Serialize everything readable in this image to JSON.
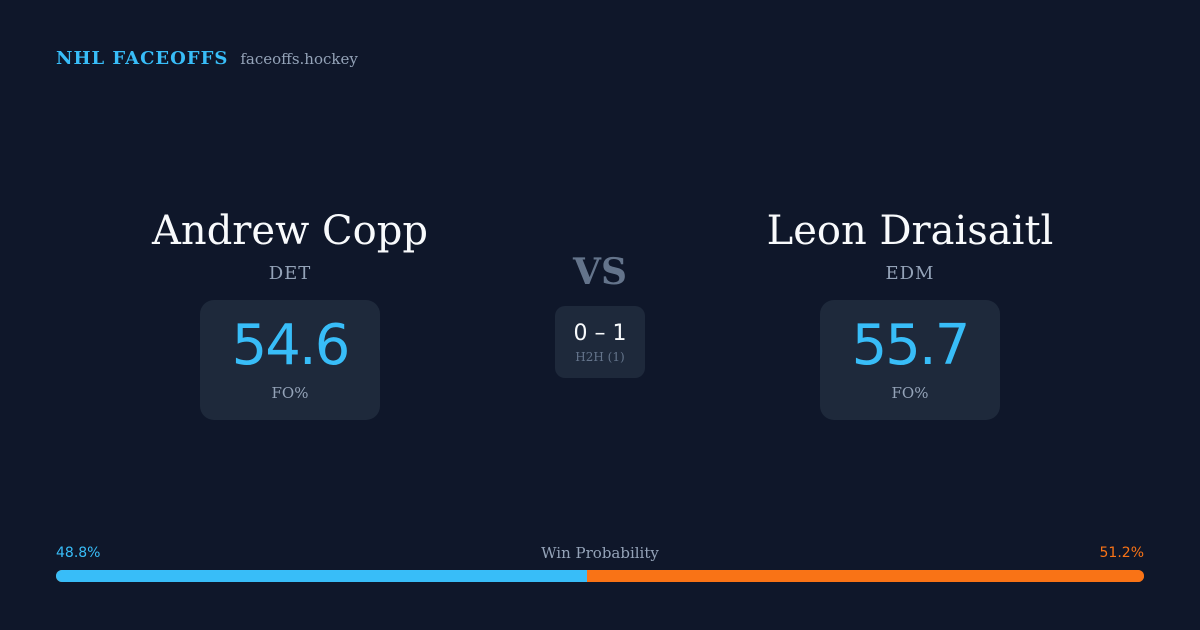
{
  "brand": {
    "title": "NHL FACEOFFS",
    "domain": "faceoffs.hockey"
  },
  "players": [
    {
      "name": "Andrew Copp",
      "team": "DET",
      "fo_pct": "54.6",
      "fo_label": "FO%"
    },
    {
      "name": "Leon Draisaitl",
      "team": "EDM",
      "fo_pct": "55.7",
      "fo_label": "FO%"
    }
  ],
  "matchup": {
    "vs": "VS",
    "h2h_score": "0 – 1",
    "h2h_label": "H2H (1)"
  },
  "win_probability": {
    "title": "Win Probability",
    "left_label": "48.8%",
    "right_label": "51.2%",
    "left_value": 48.8,
    "right_value": 51.2
  },
  "colors": {
    "background": "#0f172a",
    "accent": "#38bdf8",
    "opponent": "#f97316",
    "card": "#1e293b"
  }
}
